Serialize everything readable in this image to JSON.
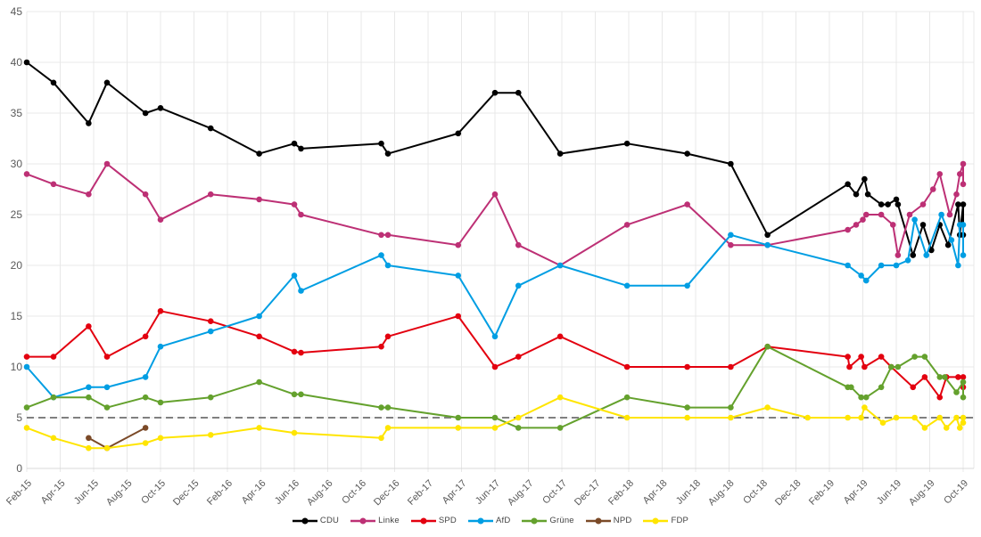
{
  "chart_data": {
    "type": "line",
    "title": "",
    "x_axis": {
      "unit": "months since Feb-2015",
      "range": [
        0,
        56
      ],
      "tick_interval_months": 2,
      "tick_labels": [
        "Feb-15",
        "Apr-15",
        "Jun-15",
        "Aug-15",
        "Oct-15",
        "Dec-15",
        "Feb-16",
        "Apr-16",
        "Jun-16",
        "Aug-16",
        "Oct-16",
        "Dec-16",
        "Feb-17",
        "Apr-17",
        "Jun-17",
        "Aug-17",
        "Oct-17",
        "Dec-17",
        "Feb-18",
        "Apr-18",
        "Jun-18",
        "Aug-18",
        "Oct-18",
        "Dec-18",
        "Feb-19",
        "Apr-19",
        "Jun-19",
        "Aug-19",
        "Oct-19"
      ]
    },
    "y_axis": {
      "min": 0,
      "max": 45,
      "step": 5,
      "tick_labels": [
        "0",
        "5",
        "10",
        "15",
        "20",
        "25",
        "30",
        "35",
        "40",
        "45"
      ]
    },
    "grid": {
      "show": true,
      "color": "#e8e8e8"
    },
    "threshold_line": {
      "value": 5,
      "style": "dashed",
      "color": "#808080"
    },
    "legend_position": "bottom-center",
    "colors": {
      "axis_text": "#595959",
      "legend_text": "#444444",
      "axis_line": "#d9d9d9"
    },
    "series": [
      {
        "name": "CDU",
        "slug": "cdu",
        "color": "#000000",
        "points": [
          [
            0,
            40
          ],
          [
            1.6,
            38
          ],
          [
            3.7,
            34
          ],
          [
            4.8,
            38
          ],
          [
            7.1,
            35
          ],
          [
            8,
            35.5
          ],
          [
            11,
            33.5
          ],
          [
            13.9,
            31
          ],
          [
            16,
            32
          ],
          [
            16.4,
            31.5
          ],
          [
            21.2,
            32
          ],
          [
            21.6,
            31
          ],
          [
            25.8,
            33
          ],
          [
            28,
            37
          ],
          [
            29.4,
            37
          ],
          [
            31.9,
            31
          ],
          [
            35.9,
            32
          ],
          [
            39.5,
            31
          ],
          [
            42.1,
            30
          ],
          [
            44.3,
            23
          ],
          [
            49.1,
            28
          ],
          [
            49.6,
            27
          ],
          [
            50.1,
            28.5
          ],
          [
            50.3,
            27
          ],
          [
            51.1,
            26
          ],
          [
            51.5,
            26
          ],
          [
            52,
            26.5
          ],
          [
            52.1,
            26
          ],
          [
            53,
            21
          ],
          [
            53.6,
            24
          ],
          [
            54.1,
            21.5
          ],
          [
            54.6,
            24
          ],
          [
            55.1,
            22
          ],
          [
            55.7,
            26
          ],
          [
            55.8,
            23
          ],
          [
            56,
            26
          ],
          [
            56,
            23
          ]
        ]
      },
      {
        "name": "Linke",
        "slug": "linke",
        "color": "#bd3075",
        "points": [
          [
            0,
            29
          ],
          [
            1.6,
            28
          ],
          [
            3.7,
            27
          ],
          [
            4.8,
            30
          ],
          [
            7.1,
            27
          ],
          [
            8,
            24.5
          ],
          [
            11,
            27
          ],
          [
            13.9,
            26.5
          ],
          [
            16,
            26
          ],
          [
            16.4,
            25
          ],
          [
            21.2,
            23
          ],
          [
            21.6,
            23
          ],
          [
            25.8,
            22
          ],
          [
            28,
            27
          ],
          [
            29.4,
            22
          ],
          [
            31.9,
            20
          ],
          [
            35.9,
            24
          ],
          [
            39.5,
            26
          ],
          [
            42.1,
            22
          ],
          [
            44.3,
            22
          ],
          [
            49.1,
            23.5
          ],
          [
            49.6,
            24
          ],
          [
            50,
            24.5
          ],
          [
            50.2,
            25
          ],
          [
            51.1,
            25
          ],
          [
            51.8,
            24
          ],
          [
            52.1,
            21
          ],
          [
            52.8,
            25
          ],
          [
            53.6,
            26
          ],
          [
            54.2,
            27.5
          ],
          [
            54.6,
            29
          ],
          [
            55.2,
            25
          ],
          [
            55.6,
            27
          ],
          [
            55.8,
            29
          ],
          [
            56,
            30
          ],
          [
            56,
            28
          ]
        ]
      },
      {
        "name": "SPD",
        "slug": "spd",
        "color": "#e3000f",
        "points": [
          [
            0,
            11
          ],
          [
            1.6,
            11
          ],
          [
            3.7,
            14
          ],
          [
            4.8,
            11
          ],
          [
            7.1,
            13
          ],
          [
            8,
            15.5
          ],
          [
            11,
            14.5
          ],
          [
            13.9,
            13
          ],
          [
            16,
            11.5
          ],
          [
            16.4,
            11.4
          ],
          [
            21.2,
            12
          ],
          [
            21.6,
            13
          ],
          [
            25.8,
            15
          ],
          [
            28,
            10
          ],
          [
            29.4,
            11
          ],
          [
            31.9,
            13
          ],
          [
            35.9,
            10
          ],
          [
            39.5,
            10
          ],
          [
            42.1,
            10
          ],
          [
            44.3,
            12
          ],
          [
            49.1,
            11
          ],
          [
            49.2,
            10
          ],
          [
            49.9,
            11
          ],
          [
            50.1,
            10
          ],
          [
            51.1,
            11
          ],
          [
            51.7,
            10
          ],
          [
            53,
            8
          ],
          [
            53.7,
            9
          ],
          [
            54.6,
            7
          ],
          [
            55,
            9
          ],
          [
            55.7,
            9
          ],
          [
            56,
            9
          ],
          [
            56,
            8
          ]
        ]
      },
      {
        "name": "AfD",
        "slug": "afd",
        "color": "#009ee3",
        "points": [
          [
            0,
            10
          ],
          [
            1.6,
            7
          ],
          [
            3.7,
            8
          ],
          [
            4.8,
            8
          ],
          [
            7.1,
            9
          ],
          [
            8,
            12
          ],
          [
            11,
            13.5
          ],
          [
            13.9,
            15
          ],
          [
            16,
            19
          ],
          [
            16.4,
            17.5
          ],
          [
            21.2,
            21
          ],
          [
            21.6,
            20
          ],
          [
            25.8,
            19
          ],
          [
            28,
            13
          ],
          [
            29.4,
            18
          ],
          [
            31.9,
            20
          ],
          [
            35.9,
            18
          ],
          [
            39.5,
            18
          ],
          [
            42.1,
            23
          ],
          [
            44.3,
            22
          ],
          [
            49.1,
            20
          ],
          [
            49.9,
            19
          ],
          [
            50.2,
            18.5
          ],
          [
            51.1,
            20
          ],
          [
            52,
            20
          ],
          [
            52.7,
            20.5
          ],
          [
            53.1,
            24.5
          ],
          [
            53.8,
            21
          ],
          [
            54.7,
            25
          ],
          [
            55.3,
            22.5
          ],
          [
            55.7,
            20
          ],
          [
            55.8,
            24
          ],
          [
            56,
            24
          ],
          [
            56,
            21
          ]
        ]
      },
      {
        "name": "Grüne",
        "slug": "gruene",
        "color": "#64a12d",
        "points": [
          [
            0,
            6
          ],
          [
            1.6,
            7
          ],
          [
            3.7,
            7
          ],
          [
            4.8,
            6
          ],
          [
            7.1,
            7
          ],
          [
            8,
            6.5
          ],
          [
            11,
            7
          ],
          [
            13.9,
            8.5
          ],
          [
            16,
            7.3
          ],
          [
            16.4,
            7.3
          ],
          [
            21.2,
            6
          ],
          [
            21.6,
            6
          ],
          [
            25.8,
            5
          ],
          [
            28,
            5
          ],
          [
            29.4,
            4
          ],
          [
            31.9,
            4
          ],
          [
            35.9,
            7
          ],
          [
            39.5,
            6
          ],
          [
            42.1,
            6
          ],
          [
            44.3,
            12
          ],
          [
            49.1,
            8
          ],
          [
            49.3,
            8
          ],
          [
            49.9,
            7
          ],
          [
            50.2,
            7
          ],
          [
            51.1,
            8
          ],
          [
            51.7,
            10
          ],
          [
            52.1,
            10
          ],
          [
            53.1,
            11
          ],
          [
            53.7,
            11
          ],
          [
            54.6,
            9
          ],
          [
            54.9,
            9
          ],
          [
            55.6,
            7.5
          ],
          [
            56,
            8.5
          ],
          [
            56,
            7
          ]
        ]
      },
      {
        "name": "NPD",
        "slug": "npd",
        "color": "#7b4a28",
        "points": [
          [
            3.7,
            3
          ],
          [
            4.8,
            2
          ],
          [
            7.1,
            4
          ]
        ]
      },
      {
        "name": "FDP",
        "slug": "fdp",
        "color": "#ffe500",
        "points": [
          [
            0,
            4
          ],
          [
            1.6,
            3
          ],
          [
            3.7,
            2
          ],
          [
            4.8,
            2
          ],
          [
            7.1,
            2.5
          ],
          [
            8,
            3
          ],
          [
            11,
            3.3
          ],
          [
            13.9,
            4
          ],
          [
            16,
            3.5
          ],
          [
            21.2,
            3
          ],
          [
            21.6,
            4
          ],
          [
            25.8,
            4
          ],
          [
            28,
            4
          ],
          [
            29.4,
            5
          ],
          [
            31.9,
            7
          ],
          [
            35.9,
            5
          ],
          [
            39.5,
            5
          ],
          [
            42.1,
            5
          ],
          [
            44.3,
            6
          ],
          [
            46.7,
            5
          ],
          [
            49.1,
            5
          ],
          [
            49.9,
            5
          ],
          [
            50.1,
            6
          ],
          [
            51.2,
            4.5
          ],
          [
            52,
            5
          ],
          [
            53.1,
            5
          ],
          [
            53.7,
            4
          ],
          [
            54.6,
            5
          ],
          [
            55,
            4
          ],
          [
            55.6,
            5
          ],
          [
            55.8,
            4
          ],
          [
            56,
            5
          ],
          [
            56,
            4.5
          ]
        ]
      }
    ]
  }
}
